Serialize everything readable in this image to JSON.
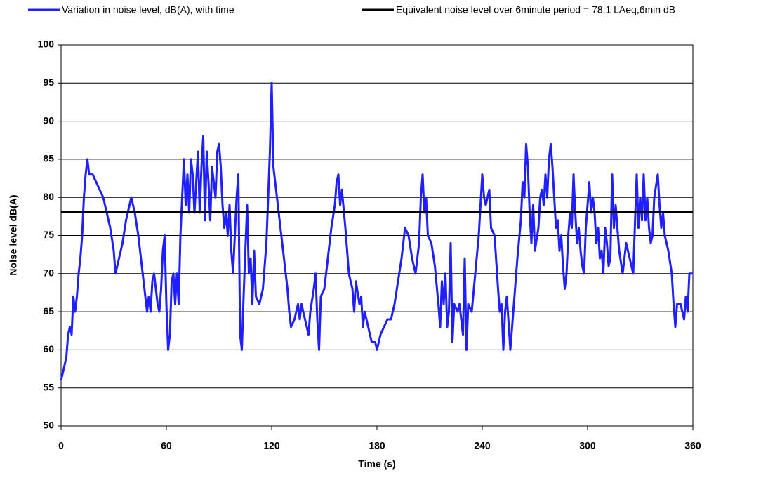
{
  "chart_data": {
    "type": "line",
    "x_label": "Time (s)",
    "y_label": "Noise level dB(A)",
    "xlim": [
      0,
      360
    ],
    "xticks": [
      0,
      60,
      120,
      180,
      240,
      300,
      360
    ],
    "ylim": [
      50,
      100
    ],
    "yticks": [
      50,
      55,
      60,
      65,
      70,
      75,
      80,
      85,
      90,
      95,
      100
    ],
    "grid": true,
    "legend": "top",
    "series": [
      {
        "name": "Variation in noise level, dB(A), with time",
        "color": "#1f1fff",
        "x": [
          0,
          1,
          2,
          3,
          4,
          5,
          6,
          7,
          8,
          9,
          10,
          11,
          12,
          13,
          14,
          15,
          16,
          18,
          20,
          22,
          24,
          26,
          28,
          30,
          31,
          33,
          35,
          37,
          39,
          40,
          42,
          44,
          46,
          48,
          49,
          50,
          51,
          52,
          53,
          55,
          56,
          57,
          58,
          59,
          60,
          61,
          62,
          63,
          64,
          65,
          66,
          67,
          68,
          69,
          70,
          71,
          72,
          73,
          74,
          75,
          76,
          78,
          79,
          80,
          81,
          82,
          83,
          84,
          85,
          86,
          88,
          89,
          90,
          91,
          92,
          93,
          94,
          95,
          96,
          97,
          98,
          100,
          101,
          102,
          103,
          104,
          106,
          107,
          108,
          109,
          110,
          111,
          113,
          115,
          117,
          118,
          119,
          120,
          121,
          122,
          123,
          125,
          127,
          129,
          130,
          131,
          133,
          135,
          136,
          137,
          139,
          140,
          141,
          142,
          144,
          145,
          146,
          147,
          148,
          150,
          152,
          154,
          156,
          157,
          158,
          159,
          160,
          162,
          164,
          166,
          167,
          168,
          170,
          171,
          172,
          173,
          175,
          177,
          179,
          180,
          182,
          184,
          186,
          188,
          190,
          192,
          194,
          196,
          198,
          200,
          202,
          204,
          205,
          206,
          207,
          208,
          209,
          211,
          213,
          215,
          216,
          217,
          218,
          219,
          220,
          221,
          222,
          223,
          224,
          226,
          227,
          229,
          230,
          231,
          232,
          234,
          236,
          238,
          239,
          240,
          241,
          242,
          244,
          245,
          247,
          249,
          250,
          251,
          252,
          253,
          254,
          256,
          257,
          258,
          260,
          262,
          263,
          264,
          265,
          266,
          267,
          268,
          269,
          270,
          272,
          273,
          274,
          275,
          276,
          277,
          278,
          279,
          280,
          281,
          282,
          283,
          284,
          285,
          286,
          287,
          288,
          289,
          290,
          291,
          292,
          293,
          294,
          295,
          296,
          297,
          298,
          299,
          301,
          302,
          303,
          304,
          305,
          306,
          307,
          308,
          309,
          310,
          311,
          312,
          313,
          314,
          315,
          316,
          318,
          320,
          322,
          324,
          326,
          328,
          329,
          330,
          331,
          332,
          333,
          334,
          335,
          336,
          337,
          338,
          340,
          341,
          342,
          343,
          344,
          346,
          348,
          349,
          350,
          351,
          353,
          354,
          355,
          356,
          357,
          358,
          360
        ],
        "values": [
          56,
          57,
          58,
          59,
          62,
          63,
          62,
          67,
          65,
          67,
          70,
          72,
          75,
          80,
          83,
          85,
          83,
          83,
          82,
          81,
          80,
          78,
          76,
          73,
          70,
          72,
          74,
          77,
          79,
          80,
          78,
          75,
          71,
          67,
          65,
          67,
          65,
          69,
          70,
          66,
          65,
          68,
          73,
          75,
          66,
          60,
          62,
          69,
          70,
          66,
          70,
          66,
          75,
          80,
          85,
          79,
          83,
          78,
          85,
          83,
          78,
          86,
          78,
          84,
          88,
          77,
          86,
          82,
          77,
          84,
          80,
          86,
          87,
          84,
          79,
          76,
          78,
          75,
          79,
          73,
          70,
          80,
          83,
          62,
          60,
          67,
          79,
          70,
          72,
          66,
          73,
          67,
          66,
          68,
          74,
          80,
          86,
          95,
          84,
          82,
          80,
          76,
          72,
          68,
          65,
          63,
          64,
          66,
          64,
          66,
          64,
          63,
          62,
          65,
          68,
          70,
          64,
          60,
          67,
          68,
          72,
          76,
          79,
          82,
          83,
          79,
          81,
          76,
          70,
          68,
          65,
          69,
          66,
          67,
          63,
          65,
          63,
          61,
          61,
          60,
          62,
          63,
          64,
          64,
          66,
          69,
          72,
          76,
          75,
          72,
          70,
          74,
          80,
          83,
          78,
          80,
          75,
          74,
          71,
          66,
          63,
          69,
          66,
          70,
          63,
          65,
          74,
          61,
          66,
          65,
          66,
          62,
          72,
          60,
          66,
          65,
          70,
          75,
          79,
          83,
          80,
          79,
          81,
          76,
          75,
          68,
          65,
          66,
          60,
          65,
          67,
          60,
          63,
          66,
          72,
          77,
          82,
          80,
          87,
          84,
          78,
          74,
          79,
          73,
          76,
          80,
          81,
          79,
          83,
          80,
          85,
          87,
          84,
          80,
          76,
          77,
          73,
          75,
          71,
          68,
          70,
          75,
          78,
          76,
          83,
          78,
          74,
          76,
          73,
          71,
          70,
          76,
          82,
          78,
          80,
          78,
          74,
          76,
          72,
          73,
          70,
          76,
          74,
          71,
          72,
          83,
          76,
          79,
          73,
          70,
          74,
          72,
          70,
          83,
          76,
          80,
          77,
          83,
          77,
          80,
          76,
          74,
          75,
          80,
          83,
          79,
          76,
          78,
          75,
          73,
          70,
          66,
          63,
          66,
          66,
          65,
          64,
          67,
          65,
          70,
          70
        ]
      },
      {
        "name": "Equivalent noise level over 6minute period = 78.1  LAeq,6min dB",
        "color": "#000000",
        "x": [
          0,
          360
        ],
        "values": [
          78.1,
          78.1
        ]
      }
    ]
  }
}
